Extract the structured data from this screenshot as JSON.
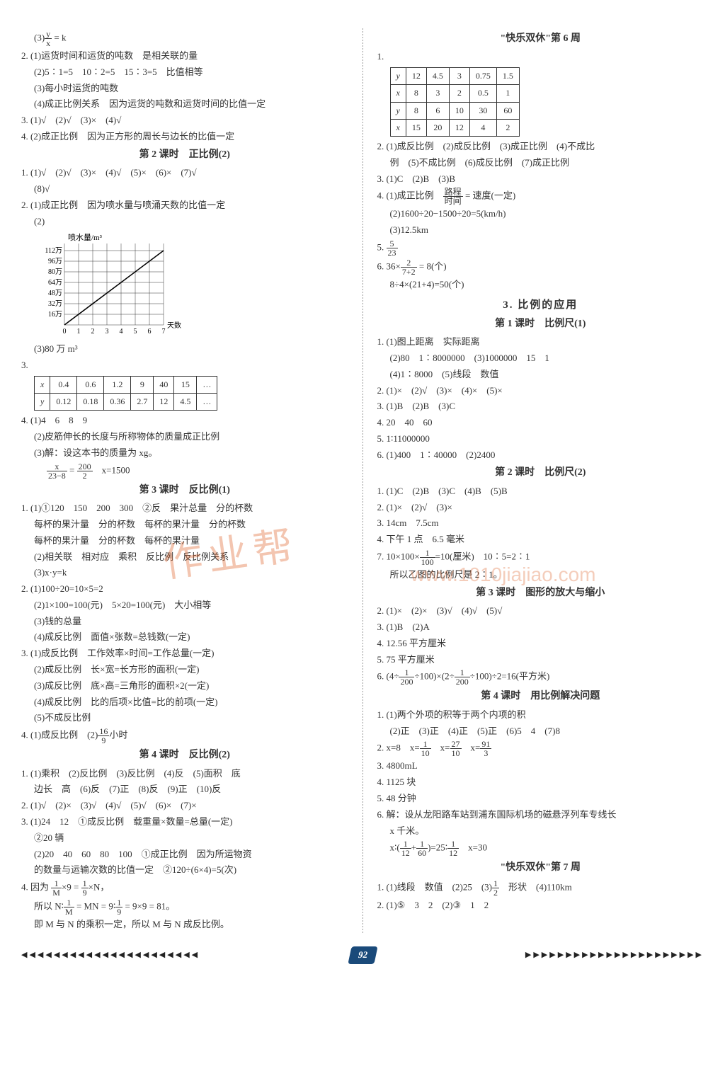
{
  "page_number": "92",
  "watermark_main": "作业帮",
  "watermark_url": "www.1010jiajiao.com",
  "left": {
    "l0": "(3) y/x = k",
    "q2_1": "2. (1)运货时间和运货的吨数　是相关联的量",
    "q2_2": "(2)5∶1=5　10∶2=5　15∶3=5　比值相等",
    "q2_3": "(3)每小时运货的吨数",
    "q2_4": "(4)成正比例关系　因为运货的吨数和运货时间的比值一定",
    "q3": "3. (1)√　(2)√　(3)×　(4)√",
    "q4": "4. (2)成正比例　因为正方形的周长与边长的比值一定",
    "h1": "第 2 课时　正比例(2)",
    "s2_1": "1. (1)√　(2)√　(3)×　(4)√　(5)×　(6)×　(7)√",
    "s2_1b": "(8)√",
    "s2_2a": "2. (1)成正比例　因为喷水量与喷涌天数的比值一定",
    "s2_2b": "(2)",
    "chart": {
      "ylabel": "喷水量/m³",
      "xlabel": "天数",
      "y_ticks": [
        "16万",
        "32万",
        "48万",
        "64万",
        "80万",
        "96万",
        "112万"
      ],
      "x_ticks": [
        "0",
        "1",
        "2",
        "3",
        "4",
        "5",
        "6",
        "7"
      ],
      "line_color": "#000",
      "grid_color": "#333",
      "bg": "#fff"
    },
    "s2_2c": "(3)80 万 m³",
    "table3": {
      "headers": [
        "x",
        "0.4",
        "0.6",
        "1.2",
        "9",
        "40",
        "15",
        "…"
      ],
      "row2": [
        "y",
        "0.12",
        "0.18",
        "0.36",
        "2.7",
        "12",
        "4.5",
        "…"
      ]
    },
    "s2_4a": "4. (1)4　6　8　9",
    "s2_4b": "(2)皮筋伸长的长度与所称物体的质量成正比例",
    "s2_4c": "(3)解：设这本书的质量为 xg。",
    "s2_4d": "x/(23−8) = 200/2　x=1500",
    "h2": "第 3 课时　反比例(1)",
    "s3_1a": "1. (1)①120　150　200　300　②反　果汁总量　分的杯数",
    "s3_1b": "每杯的果汁量　分的杯数　每杯的果汁量　分的杯数",
    "s3_1c": "每杯的果汁量　分的杯数　每杯的果汁量",
    "s3_1d": "(2)相关联　相对应　乘积　反比例　反比例关系",
    "s3_1e": "(3)x·y=k",
    "s3_2a": "2. (1)100÷20=10×5=2",
    "s3_2b": "(2)1×100=100(元)　5×20=100(元)　大小相等",
    "s3_2c": "(3)钱的总量",
    "s3_2d": "(4)成反比例　面值×张数=总钱数(一定)",
    "s3_3a": "3. (1)成反比例　工作效率×时间=工作总量(一定)",
    "s3_3b": "(2)成反比例　长×宽=长方形的面积(一定)",
    "s3_3c": "(3)成反比例　底×高=三角形的面积×2(一定)",
    "s3_3d": "(4)成反比例　比的后项×比值=比的前项(一定)",
    "s3_3e": "(5)不成反比例",
    "s3_4": "4. (1)成反比例　(2)16/9 小时",
    "h3": "第 4 课时　反比例(2)",
    "s4_1a": "1. (1)乘积　(2)反比例　(3)反比例　(4)反　(5)面积　底",
    "s4_1b": "边长　高　(6)反　(7)正　(8)反　(9)正　(10)反",
    "s4_2": "2. (1)√　(2)×　(3)√　(4)√　(5)√　(6)×　(7)×",
    "s4_3a": "3. (1)24　12　①成反比例　载重量×数量=总量(一定)",
    "s4_3b": "②20 辆",
    "s4_3c": "(2)20　40　60　80　100　①成正比例　因为所运物资",
    "s4_3d": "的数量与运输次数的比值一定　②120÷(6×4)=5(次)",
    "s4_4a": "4. 因为 1/M ×9 = 1/9 ×N，",
    "s4_4b": "所以 N∶1/M = MN = 9∶1/9 = 9×9 = 81。",
    "s4_4c": "即 M 与 N 的乘积一定，所以 M 与 N 成反比例。"
  },
  "right": {
    "h0": "\"快乐双休\"第 6 周",
    "table1": {
      "rows": [
        [
          "y",
          "12",
          "4.5",
          "3",
          "0.75",
          "1.5"
        ],
        [
          "x",
          "8",
          "3",
          "2",
          "0.5",
          "1"
        ],
        [
          "y",
          "8",
          "6",
          "10",
          "30",
          "60"
        ],
        [
          "x",
          "15",
          "20",
          "12",
          "4",
          "2"
        ]
      ]
    },
    "r2a": "2. (1)成反比例　(2)成反比例　(3)成正比例　(4)不成比",
    "r2b": "例　(5)不成比例　(6)成反比例　(7)成正比例",
    "r3": "3. (1)C　(2)B　(3)B",
    "r4a": "4. (1)成正比例　路程/时间 = 速度(一定)",
    "r4b": "(2)1600÷20−1500÷20=5(km/h)",
    "r4c": "(3)12.5km",
    "r5": "5. 5/23",
    "r6a": "6. 36× 2/(7+2) = 8(个)",
    "r6b": "8÷4×(21+4)=50(个)",
    "h1": "3. 比例的应用",
    "h1s": "第 1 课时　比例尺(1)",
    "b1_1a": "1. (1)图上距离　实际距离",
    "b1_1b": "(2)80　1∶8000000　(3)1000000　15　1",
    "b1_1c": "(4)1∶8000　(5)线段　数值",
    "b1_2": "2. (1)×　(2)√　(3)×　(4)×　(5)×",
    "b1_3": "3. (1)B　(2)B　(3)C",
    "b1_4": "4. 20　40　60",
    "b1_5": "5. 1∶11000000",
    "b1_6": "6. (1)400　1∶40000　(2)2400",
    "h2s": "第 2 课时　比例尺(2)",
    "b2_1": "1. (1)C　(2)B　(3)C　(4)B　(5)B",
    "b2_2": "2. (1)×　(2)√　(3)×",
    "b2_3": "3. 14cm　7.5cm",
    "b2_4": "4. 下午 1 点　6.5 毫米",
    "b2_7a": "7. 10×100× 1/100 =10(厘米)　10∶5=2∶1",
    "b2_7b": "所以乙图的比例尺是 2∶1。",
    "h3s": "第 3 课时　图形的放大与缩小",
    "c3_2": "2. (1)×　(2)×　(3)√　(4)√　(5)√",
    "c3_3": "3. (1)B　(2)A",
    "c3_4": "4. 12.56 平方厘米",
    "c3_5": "5. 75 平方厘米",
    "c3_6": "6. (4÷ 1/200 ÷100)×(2÷ 1/200 ÷100)÷2=16(平方米)",
    "h4s": "第 4 课时　用比例解决问题",
    "d4_1a": "1. (1)两个外项的积等于两个内项的积",
    "d4_1b": "(2)正　(3)正　(4)正　(5)正　(6)5　4　(7)8",
    "d4_2": "2. x=8　x=1/10　x=27/10　x=91/3",
    "d4_3": "3. 4800mL",
    "d4_4": "4. 1125 块",
    "d4_5": "5. 48 分钟",
    "d4_6a": "6. 解：设从龙阳路车站到浦东国际机场的磁悬浮列车专线长",
    "d4_6b": "x 千米。",
    "d4_6c": "x∶(1/12 + 1/60)=25∶1/12　x=30",
    "h5": "\"快乐双休\"第 7 周",
    "e1": "1. (1)线段　数值　(2)25　(3)1/2　形状　(4)110km",
    "e2": "2. (1)⑤　3　2　(2)③　1　2"
  },
  "footer": {
    "left_arrows": "◀◀◀◀◀◀◀◀◀◀◀◀◀◀◀◀◀◀◀◀◀◀",
    "right_arrows": "▶▶▶▶▶▶▶▶▶▶▶▶▶▶▶▶▶▶▶▶▶▶"
  }
}
